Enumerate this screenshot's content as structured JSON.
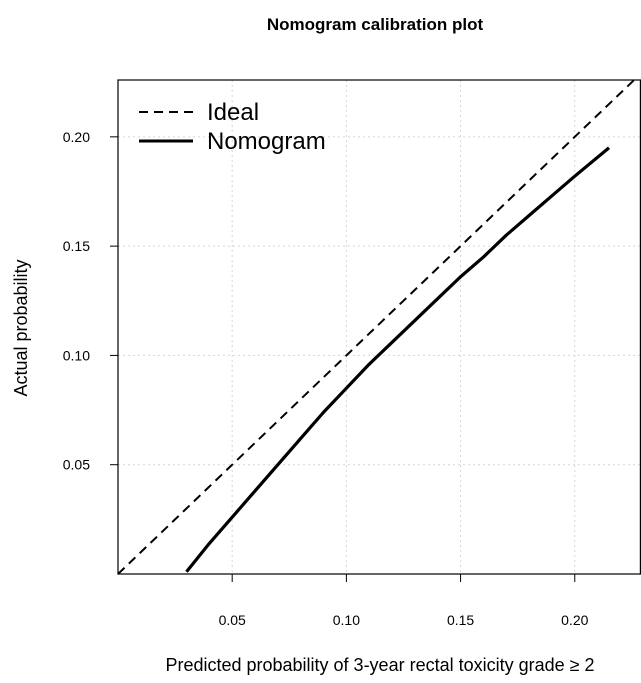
{
  "chart_data": {
    "type": "line",
    "title": "Nomogram calibration plot",
    "xlabel": "Predicted probability of 3-year rectal toxicity grade ≥ 2",
    "ylabel": "Actual probability",
    "xlim": [
      0.0,
      0.229
    ],
    "ylim": [
      0.0,
      0.226
    ],
    "xticks": [
      0.05,
      0.1,
      0.15,
      0.2
    ],
    "xtick_labels": [
      "0.05",
      "0.10",
      "0.15",
      "0.20"
    ],
    "yticks": [
      0.05,
      0.1,
      0.15,
      0.2
    ],
    "ytick_labels": [
      "0.05",
      "0.10",
      "0.15",
      "0.20"
    ],
    "grid": true,
    "legend_position": "top-left",
    "series": [
      {
        "name": "Ideal",
        "style": "dashed",
        "color": "#000000",
        "x": [
          0.0,
          0.229
        ],
        "y": [
          0.0,
          0.229
        ]
      },
      {
        "name": "Nomogram",
        "style": "solid",
        "color": "#000000",
        "x": [
          0.03,
          0.04,
          0.05,
          0.06,
          0.07,
          0.08,
          0.09,
          0.1,
          0.11,
          0.12,
          0.13,
          0.14,
          0.15,
          0.16,
          0.17,
          0.18,
          0.19,
          0.2,
          0.215
        ],
        "y": [
          0.001,
          0.014,
          0.026,
          0.038,
          0.05,
          0.062,
          0.074,
          0.085,
          0.096,
          0.106,
          0.116,
          0.126,
          0.136,
          0.145,
          0.155,
          0.164,
          0.173,
          0.182,
          0.195
        ]
      }
    ]
  }
}
